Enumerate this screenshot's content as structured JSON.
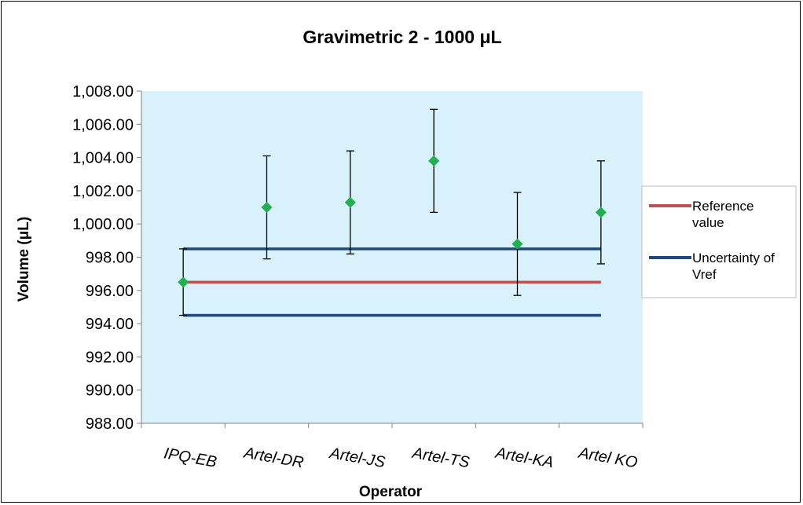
{
  "chart_data": {
    "type": "scatter",
    "title": "Gravimetric 2 - 1000 μL",
    "xlabel": "Operator",
    "ylabel": "Volume (μL)",
    "ylim": [
      988,
      1008
    ],
    "yticks": [
      "1,008.00",
      "1,006.00",
      "1,004.00",
      "1,002.00",
      "1,000.00",
      "998.00",
      "996.00",
      "994.00",
      "992.00",
      "990.00",
      "988.00"
    ],
    "categories": [
      "IPQ-EB",
      "Artel-DR",
      "Artel-JS",
      "Artel-TS",
      "Artel-KA",
      "Artel KO"
    ],
    "series": [
      {
        "values": [
          996.5,
          1001.0,
          1001.3,
          1003.8,
          998.8,
          1000.7
        ],
        "error_low": [
          994.5,
          997.9,
          998.2,
          1000.7,
          995.7,
          997.6
        ],
        "error_high": [
          998.5,
          1004.1,
          1004.4,
          1006.9,
          1001.9,
          1003.8
        ],
        "color": "#1fb04f"
      }
    ],
    "reference_lines": [
      {
        "name": "Reference value",
        "value": 996.5,
        "color": "#c0504d"
      },
      {
        "name": "Uncertainty of Vref",
        "values": [
          998.5,
          994.5
        ],
        "color": "#1f497d"
      }
    ],
    "legend": {
      "position": "right",
      "items": [
        {
          "label_lines": [
            "Reference",
            "value"
          ],
          "color": "#c0504d"
        },
        {
          "label_lines": [
            "Uncertainty of",
            "Vref"
          ],
          "color": "#1f497d"
        }
      ]
    },
    "plot_background": "#d9f1fb",
    "grid": false
  }
}
